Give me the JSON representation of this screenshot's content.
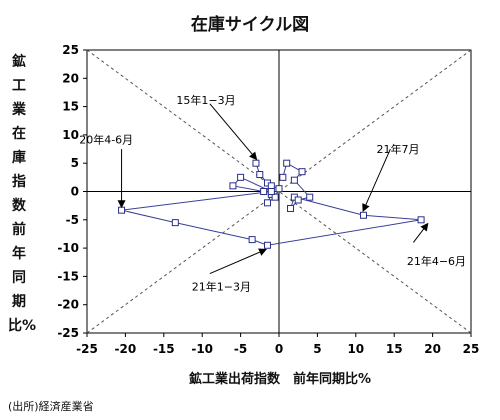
{
  "chart_data": {
    "type": "line",
    "title": "在庫サイクル図",
    "ylabel": "鉱工業在庫指数 前年同期比%",
    "xlabel": "鉱工業出荷指数　前年同期比%",
    "source": "(出所)経済産業省",
    "xlim": [
      -25,
      25
    ],
    "ylim": [
      -25,
      25
    ],
    "xticks": [
      -25,
      -20,
      -15,
      -10,
      -5,
      0,
      5,
      10,
      15,
      20,
      25
    ],
    "yticks": [
      25,
      20,
      15,
      10,
      5,
      0,
      -5,
      -10,
      -15,
      -20,
      -25
    ],
    "grid": false,
    "diagonals": true,
    "points": [
      {
        "x": -3.0,
        "y": 5.0
      },
      {
        "x": -2.5,
        "y": 3.0
      },
      {
        "x": -1.5,
        "y": 1.5
      },
      {
        "x": -1.0,
        "y": -0.5
      },
      {
        "x": -1.5,
        "y": -2.0
      },
      {
        "x": -0.5,
        "y": -1.0
      },
      {
        "x": 0.0,
        "y": 0.5
      },
      {
        "x": -1.0,
        "y": 1.0
      },
      {
        "x": -2.0,
        "y": 0.0
      },
      {
        "x": -6.0,
        "y": 1.0
      },
      {
        "x": -5.0,
        "y": 2.5
      },
      {
        "x": -1.0,
        "y": 0.0
      },
      {
        "x": -20.5,
        "y": -3.3
      },
      {
        "x": -13.5,
        "y": -5.5
      },
      {
        "x": -3.5,
        "y": -8.5
      },
      {
        "x": -1.5,
        "y": -9.5
      },
      {
        "x": 18.5,
        "y": -5.0
      },
      {
        "x": 11.0,
        "y": -4.2
      },
      {
        "x": 2.0,
        "y": -1.0
      },
      {
        "x": 1.5,
        "y": -3.0
      },
      {
        "x": 2.5,
        "y": -1.5
      },
      {
        "x": 4.0,
        "y": -1.0
      },
      {
        "x": 2.0,
        "y": 2.0
      },
      {
        "x": 3.0,
        "y": 3.5
      },
      {
        "x": 1.0,
        "y": 5.0
      },
      {
        "x": 0.5,
        "y": 2.5
      }
    ],
    "annotations": [
      {
        "text": "15年1−3月",
        "x": -9.0,
        "y": 15.5,
        "ax": -3.0,
        "ay": 5.8,
        "tx": -9.5,
        "ty": 15.5
      },
      {
        "text": "20年4-6月",
        "x": -20.5,
        "y": 7.5,
        "ax": -20.5,
        "ay": -2.6,
        "tx": -22.5,
        "ty": 8.5
      },
      {
        "text": "21年7月",
        "x": 14.5,
        "y": 7.5,
        "ax": 11.0,
        "ay": -3.3,
        "tx": 15.5,
        "ty": 6.8
      },
      {
        "text": "21年4−6月",
        "x": 17.5,
        "y": -9.0,
        "ax": 19.3,
        "ay": -5.8,
        "tx": 20.5,
        "ty": -13.0
      },
      {
        "text": "21年1−3月",
        "x": -9.0,
        "y": -14.5,
        "ax": -1.8,
        "ay": -10.3,
        "tx": -7.5,
        "ty": -17.5
      }
    ]
  }
}
